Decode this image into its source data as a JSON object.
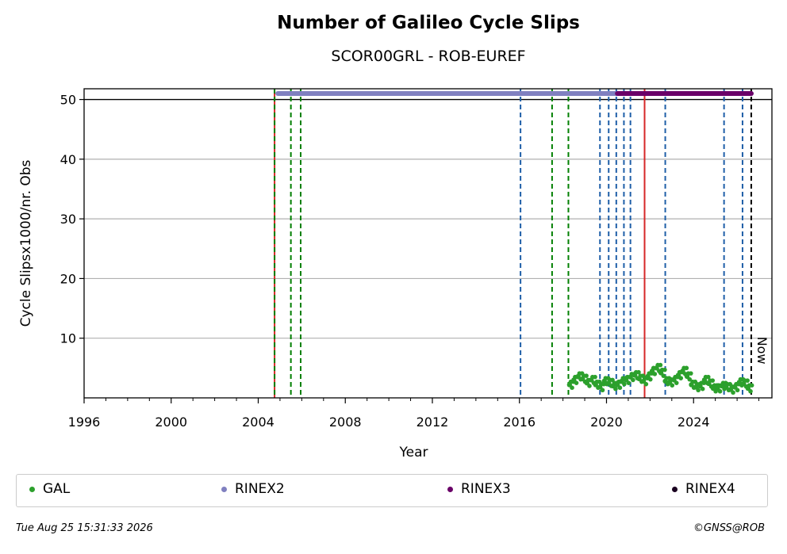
{
  "chart_data": {
    "type": "scatter",
    "title": "Number of Galileo Cycle Slips",
    "subtitle": "SCOR00GRL - ROB-EUREF",
    "xlabel": "Year",
    "ylabel": "Cycle Slipsx1000/nr. Obs",
    "xlim": [
      1996,
      2027.6
    ],
    "ylim": [
      0,
      51.8
    ],
    "x_ticks": [
      1996,
      2000,
      2004,
      2008,
      2012,
      2016,
      2020,
      2024
    ],
    "y_ticks": [
      10,
      20,
      30,
      40,
      50
    ],
    "grid": "horizontal",
    "reference_line_y": 50,
    "now_label": "Now",
    "now_x": 2026.65,
    "event_lines": [
      {
        "x": 2004.75,
        "color": "#d62728",
        "style": "solid"
      },
      {
        "x": 2004.75,
        "color": "#008000",
        "style": "dashed"
      },
      {
        "x": 2005.5,
        "color": "#008000",
        "style": "dashed"
      },
      {
        "x": 2005.95,
        "color": "#008000",
        "style": "dashed"
      },
      {
        "x": 2016.05,
        "color": "#1f5fa8",
        "style": "dashed"
      },
      {
        "x": 2017.5,
        "color": "#008000",
        "style": "dashed"
      },
      {
        "x": 2018.25,
        "color": "#008000",
        "style": "dashed"
      },
      {
        "x": 2019.7,
        "color": "#1f5fa8",
        "style": "dashed"
      },
      {
        "x": 2020.1,
        "color": "#1f5fa8",
        "style": "dashed"
      },
      {
        "x": 2020.45,
        "color": "#1f5fa8",
        "style": "dashed"
      },
      {
        "x": 2020.8,
        "color": "#1f5fa8",
        "style": "dashed"
      },
      {
        "x": 2021.1,
        "color": "#1f5fa8",
        "style": "dashed"
      },
      {
        "x": 2021.75,
        "color": "#d62728",
        "style": "solid"
      },
      {
        "x": 2022.7,
        "color": "#1f5fa8",
        "style": "dashed"
      },
      {
        "x": 2025.4,
        "color": "#1f5fa8",
        "style": "dashed"
      },
      {
        "x": 2026.25,
        "color": "#1f5fa8",
        "style": "dashed"
      },
      {
        "x": 2026.65,
        "color": "#000000",
        "style": "dashed"
      }
    ],
    "availability_bars": [
      {
        "name": "RINEX2",
        "x_start": 2004.9,
        "x_end": 2026.65,
        "y": 51.0,
        "color": "#8080c0"
      },
      {
        "name": "RINEX3",
        "x_start": 2020.5,
        "x_end": 2026.65,
        "y": 51.0,
        "color": "#6a0068"
      }
    ],
    "series": [
      {
        "name": "GAL",
        "color": "#2ca02c",
        "x": [
          2018.3,
          2018.5,
          2018.7,
          2018.9,
          2019.1,
          2019.3,
          2019.5,
          2019.7,
          2019.9,
          2020.1,
          2020.3,
          2020.5,
          2020.7,
          2020.9,
          2021.1,
          2021.3,
          2021.5,
          2021.7,
          2021.9,
          2022.1,
          2022.3,
          2022.5,
          2022.7,
          2022.9,
          2023.1,
          2023.3,
          2023.5,
          2023.7,
          2023.9,
          2024.1,
          2024.3,
          2024.5,
          2024.7,
          2024.9,
          2025.1,
          2025.3,
          2025.5,
          2025.7,
          2025.9,
          2026.1,
          2026.3,
          2026.5
        ],
        "values": [
          2.2,
          3.0,
          3.6,
          3.2,
          2.5,
          3.0,
          2.2,
          1.8,
          2.8,
          2.5,
          2.0,
          2.2,
          2.8,
          3.0,
          3.5,
          3.8,
          3.2,
          2.8,
          3.6,
          4.5,
          5.0,
          4.2,
          2.8,
          2.6,
          3.0,
          3.8,
          4.5,
          3.6,
          2.2,
          1.8,
          2.0,
          3.0,
          2.4,
          1.6,
          1.6,
          2.0,
          1.8,
          1.4,
          1.8,
          2.6,
          2.4,
          1.6
        ]
      }
    ],
    "legend": {
      "placement": "bottom",
      "entries": [
        {
          "label": "GAL",
          "color": "#2ca02c"
        },
        {
          "label": "RINEX2",
          "color": "#8080c0"
        },
        {
          "label": "RINEX3",
          "color": "#6a0068"
        },
        {
          "label": "RINEX4",
          "color": "#1a0020"
        }
      ]
    }
  },
  "footer": {
    "timestamp": "Tue Aug 25 15:31:33 2026",
    "credit": "©GNSS@ROB"
  }
}
